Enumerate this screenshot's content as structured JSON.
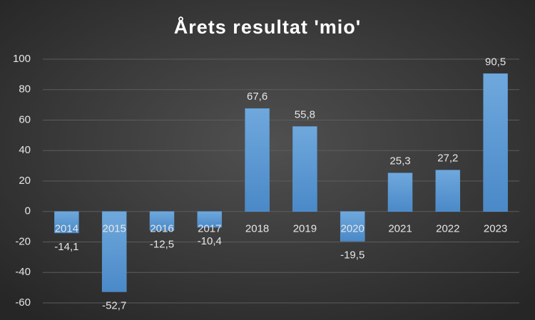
{
  "chart_data": {
    "type": "bar",
    "title": "Årets resultat 'mio'",
    "categories": [
      "2014",
      "2015",
      "2016",
      "2017",
      "2018",
      "2019",
      "2020",
      "2021",
      "2022",
      "2023"
    ],
    "values": [
      -14.1,
      -52.7,
      -12.5,
      -10.4,
      67.6,
      55.8,
      -19.5,
      25.3,
      27.2,
      90.5
    ],
    "value_labels": [
      "-14,1",
      "-52,7",
      "-12,5",
      "-10,4",
      "67,6",
      "55,8",
      "-19,5",
      "25,3",
      "27,2",
      "90,5"
    ],
    "color": "#5b9bd5",
    "ylim": [
      -60,
      100
    ],
    "yticks": [
      -60,
      -40,
      -20,
      0,
      20,
      40,
      60,
      80,
      100
    ],
    "grid": true
  }
}
